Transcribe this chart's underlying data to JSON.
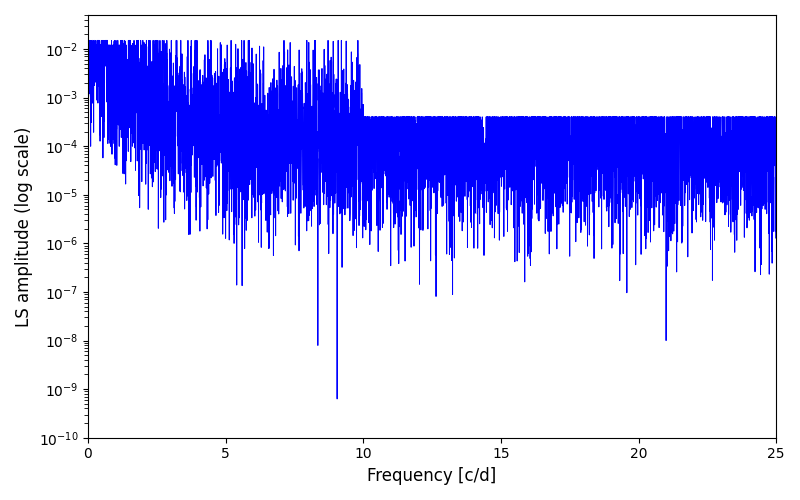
{
  "title": "",
  "xlabel": "Frequency [c/d]",
  "ylabel": "LS amplitude (log scale)",
  "line_color": "#0000ff",
  "line_width": 0.7,
  "xlim": [
    0,
    25
  ],
  "ylim": [
    1e-10,
    0.05
  ],
  "xticks": [
    0,
    5,
    10,
    15,
    20,
    25
  ],
  "background_color": "#ffffff",
  "figsize": [
    8.0,
    5.0
  ],
  "dpi": 100,
  "n_points": 6000,
  "seed": 77
}
